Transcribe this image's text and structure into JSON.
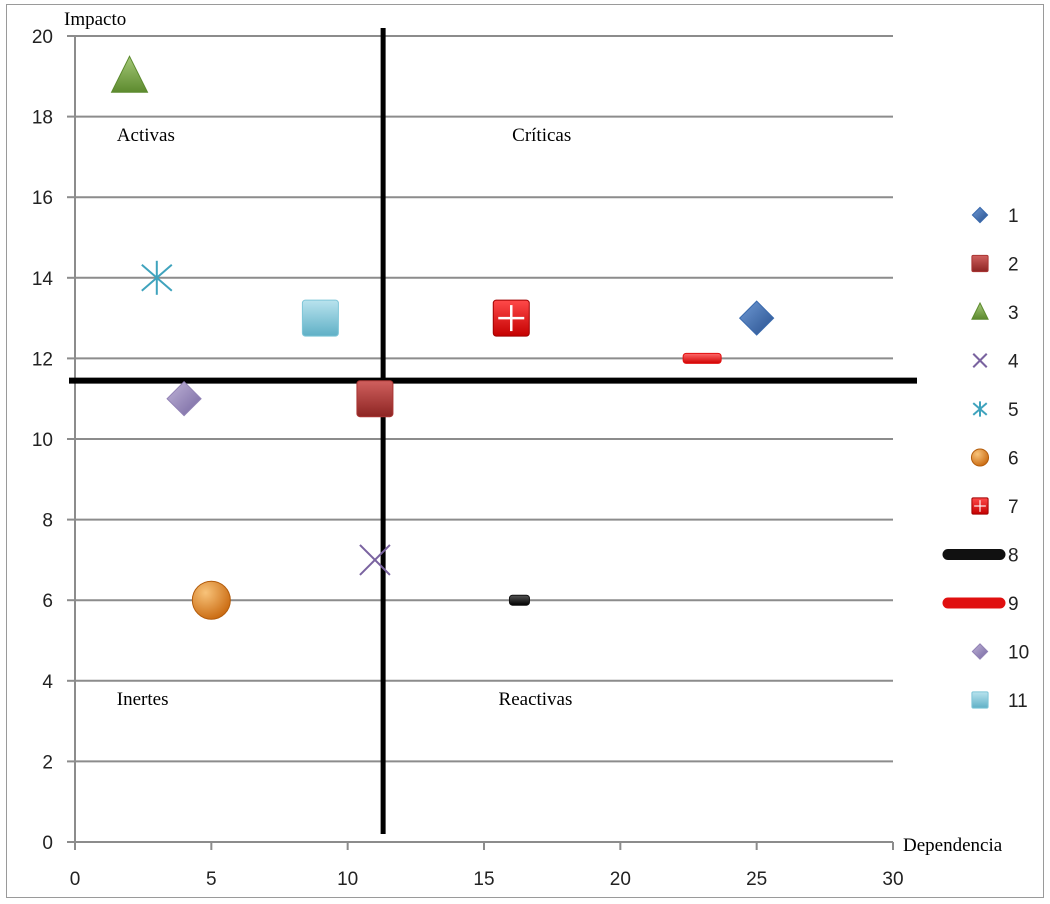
{
  "chart_data": {
    "type": "scatter",
    "title": "",
    "xlabel": "Dependencia",
    "ylabel": "Impacto",
    "xlim": [
      0,
      30
    ],
    "ylim": [
      0,
      20
    ],
    "x_ticks": [
      0,
      5,
      10,
      15,
      20,
      25,
      30
    ],
    "y_ticks": [
      0,
      2,
      4,
      6,
      8,
      10,
      12,
      14,
      16,
      18,
      20
    ],
    "grid": "horizontal",
    "legend_position": "right",
    "series": [
      {
        "name": "1",
        "marker": "diamond",
        "color": "#3a6aad",
        "points": [
          [
            25,
            13
          ]
        ]
      },
      {
        "name": "2",
        "marker": "square",
        "color": "#a93533",
        "points": [
          [
            11,
            11
          ]
        ]
      },
      {
        "name": "3",
        "marker": "triangle",
        "color": "#77a040",
        "points": [
          [
            2,
            19
          ]
        ]
      },
      {
        "name": "4",
        "marker": "x",
        "color": "#7a63a0",
        "points": [
          [
            11,
            7
          ]
        ]
      },
      {
        "name": "5",
        "marker": "star",
        "color": "#3fa3bd",
        "points": [
          [
            3,
            14
          ]
        ]
      },
      {
        "name": "6",
        "marker": "circle",
        "color": "#e48a22",
        "points": [
          [
            5,
            6
          ]
        ]
      },
      {
        "name": "7",
        "marker": "plus-square",
        "color": "#e01010",
        "points": [
          [
            16,
            13
          ]
        ]
      },
      {
        "name": "8",
        "marker": "dash",
        "color": "#111111",
        "points": [
          [
            16.3,
            6
          ]
        ]
      },
      {
        "name": "9",
        "marker": "dash",
        "color": "#e01010",
        "points": [
          [
            23,
            12
          ]
        ]
      },
      {
        "name": "10",
        "marker": "diamond",
        "color": "#9182b5",
        "points": [
          [
            4,
            11
          ]
        ]
      },
      {
        "name": "11",
        "marker": "square",
        "color": "#7fc6d8",
        "points": [
          [
            9,
            13
          ]
        ]
      }
    ],
    "dividers": {
      "vertical_x": 11.3,
      "horizontal_y": 11.45,
      "color": "#000000"
    },
    "annotations": [
      {
        "text": "Activas",
        "x": 3,
        "y": 17.4
      },
      {
        "text": "Críticas",
        "x": 17.5,
        "y": 17.4
      },
      {
        "text": "Inertes",
        "x": 3,
        "y": 3.4
      },
      {
        "text": "Reactivas",
        "x": 17,
        "y": 3.4
      }
    ]
  }
}
